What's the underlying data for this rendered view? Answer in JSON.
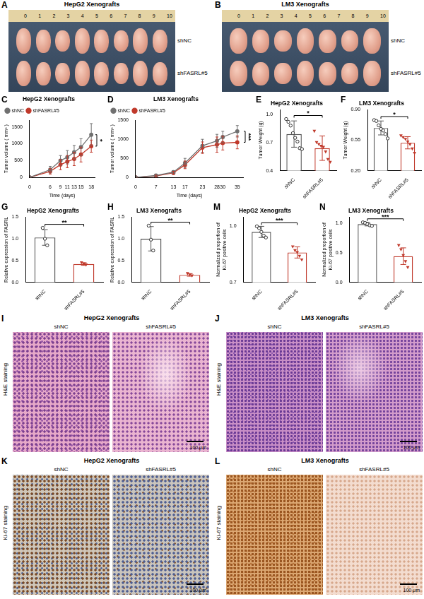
{
  "figure": {
    "photos": [
      {
        "label": "A",
        "title": "HepG2 Xenografts",
        "rows": [
          "shNC",
          "shFASRL#5"
        ],
        "count": 8,
        "ruler": [
          0,
          1,
          2,
          3,
          4,
          5,
          6,
          7,
          8,
          9,
          10
        ]
      },
      {
        "label": "B",
        "title": "LM3 Xenografts",
        "rows": [
          "shNC",
          "shFASRL#5"
        ],
        "count": 7,
        "ruler": [
          0,
          1,
          2,
          3,
          4,
          5,
          6,
          7,
          8,
          9,
          10
        ]
      }
    ],
    "micrographs": [
      {
        "label": "I",
        "title": "HepG2 Xenografts",
        "stain": "H&E staining",
        "groups": [
          "shNC",
          "shFASRL#5"
        ],
        "scale_bar": "100 μm"
      },
      {
        "label": "J",
        "title": "LM3 Xenografts",
        "stain": "H&E staining",
        "groups": [
          "shNC",
          "shFASRL#5"
        ],
        "scale_bar": "100 μm"
      },
      {
        "label": "K",
        "title": "HepG2 Xenografts",
        "stain": "Ki-67 staining",
        "groups": [
          "shNC",
          "shFASRL#5"
        ],
        "scale_bar": "100 μm"
      },
      {
        "label": "L",
        "title": "LM3 Xenografts",
        "stain": "Ki-67 staining",
        "groups": [
          "shNC",
          "shFASRL#5"
        ],
        "scale_bar": "100 μm"
      }
    ]
  },
  "chart_data": [
    {
      "label": "C",
      "type": "line",
      "title": "HepG2 Xenografts",
      "x_label": "Time (days)",
      "y_label": "Tumor volume ( mm³ )",
      "x": [
        0,
        6,
        9,
        11,
        13,
        15,
        18
      ],
      "xlim": [
        0,
        19
      ],
      "xticks": [
        0,
        6,
        9,
        11,
        13,
        15,
        18
      ],
      "ylim": [
        0,
        1700
      ],
      "yticks": [
        0,
        500,
        1000,
        1500
      ],
      "grid": false,
      "legend": "upper left",
      "annotation": "*",
      "series": [
        {
          "name": "shNC",
          "color": "#707070",
          "marker": "circle",
          "line_style": "solid",
          "values": [
            0,
            230,
            500,
            600,
            750,
            900,
            1270
          ],
          "errors": [
            0,
            100,
            150,
            200,
            200,
            250,
            330
          ]
        },
        {
          "name": "shFASRL#5",
          "color": "#c0392b",
          "marker": "circle",
          "line_style": "solid",
          "values": [
            0,
            180,
            380,
            470,
            550,
            680,
            930
          ],
          "errors": [
            0,
            80,
            150,
            180,
            200,
            220,
            180
          ]
        }
      ]
    },
    {
      "label": "D",
      "type": "line",
      "title": "LM3 Xenografts",
      "x_label": "Time (days)",
      "y_label": "Tumor volume ( mm³ )",
      "x": [
        0,
        7,
        13,
        17,
        23,
        28,
        30,
        35
      ],
      "xlim": [
        0,
        37
      ],
      "xticks": [
        0,
        7,
        13,
        17,
        23,
        28,
        30,
        35
      ],
      "ylim": [
        0,
        1500
      ],
      "yticks": [
        0,
        500,
        1000,
        1500
      ],
      "grid": false,
      "legend": "upper left",
      "annotation": "***",
      "series": [
        {
          "name": "shNC",
          "color": "#707070",
          "marker": "circle",
          "line_style": "solid",
          "values": [
            0,
            50,
            140,
            380,
            830,
            960,
            1060,
            1210
          ],
          "errors": [
            0,
            20,
            40,
            120,
            170,
            170,
            150,
            150
          ]
        },
        {
          "name": "shFASRL#5",
          "color": "#c0392b",
          "marker": "circle",
          "line_style": "solid",
          "values": [
            0,
            40,
            120,
            330,
            780,
            860,
            900,
            920
          ],
          "errors": [
            0,
            20,
            40,
            100,
            150,
            200,
            180,
            170
          ]
        }
      ]
    },
    {
      "label": "E",
      "type": "bar",
      "title": "HepG2 Xenografts",
      "y_label": "Tumor Weight (g)",
      "categories": [
        "shNC",
        "shFASRL#5"
      ],
      "values": [
        0.79,
        0.64
      ],
      "errors": [
        0.14,
        0.13
      ],
      "colors": [
        "#555555",
        "#c0392b"
      ],
      "points": [
        {
          "marker": "circle",
          "values": [
            0.95,
            0.92,
            0.88,
            0.8,
            0.75,
            0.71,
            0.64,
            0.63
          ]
        },
        {
          "marker": "triangle",
          "values": [
            0.82,
            0.7,
            0.68,
            0.66,
            0.65,
            0.6,
            0.52,
            0.49
          ]
        }
      ],
      "ylim": [
        0.4,
        1.05
      ],
      "yticks": [
        0.4,
        0.7,
        {
          "value": 1.0,
          "label": "1.0"
        }
      ],
      "grid": false,
      "annotation": "*"
    },
    {
      "label": "F",
      "type": "bar",
      "title": "LM3 Xenografts",
      "y_label": "Tumor Weight (g)",
      "categories": [
        "shNC",
        "shFASRL#5"
      ],
      "values": [
        0.69,
        0.52
      ],
      "errors": [
        0.08,
        0.07
      ],
      "colors": [
        "#555555",
        "#c0392b"
      ],
      "points": [
        {
          "marker": "circle",
          "values": [
            0.78,
            0.77,
            0.72,
            0.68,
            0.66,
            0.62,
            0.57
          ]
        },
        {
          "marker": "triangle",
          "values": [
            0.6,
            0.58,
            0.56,
            0.53,
            0.5,
            0.45,
            0.4
          ]
        }
      ],
      "ylim": [
        0.2,
        0.9
      ],
      "yticks": [
        {
          "value": 0.2,
          "label": "0.20"
        },
        0.55,
        {
          "value": 0.9,
          "label": "0.90"
        }
      ],
      "grid": false,
      "annotation": "*"
    },
    {
      "label": "G",
      "type": "bar",
      "title": "HepG2 Xenografts",
      "y_label": "Relative expression of FASRL",
      "categories": [
        "shNC",
        "shFASRL#5"
      ],
      "values": [
        1.03,
        0.42
      ],
      "errors": [
        0.18,
        0.03
      ],
      "colors": [
        "#555555",
        "#c0392b"
      ],
      "points": [
        {
          "marker": "circle",
          "values": [
            1.25,
            1.0,
            0.85
          ]
        },
        {
          "marker": "triangle",
          "values": [
            0.45,
            0.42,
            0.4
          ]
        }
      ],
      "ylim": [
        0,
        1.5
      ],
      "yticks": [
        {
          "value": 0,
          "label": "0.0"
        },
        0.5,
        {
          "value": 1.0,
          "label": "1.0"
        },
        1.5
      ],
      "grid": false,
      "annotation": "**"
    },
    {
      "label": "H",
      "type": "bar",
      "title": "LM3 Xenografts",
      "y_label": "Relative expression of FASRL",
      "categories": [
        "shNC",
        "shFASRL#5"
      ],
      "values": [
        1.0,
        0.17
      ],
      "errors": [
        0.28,
        0.03
      ],
      "colors": [
        "#555555",
        "#c0392b"
      ],
      "points": [
        {
          "marker": "circle",
          "values": [
            1.3,
            0.98,
            0.73
          ]
        },
        {
          "marker": "triangle",
          "values": [
            0.2,
            0.17,
            0.15
          ]
        }
      ],
      "ylim": [
        0,
        1.5
      ],
      "yticks": [
        {
          "value": 0,
          "label": "0.0"
        },
        0.5,
        {
          "value": 1.0,
          "label": "1.0"
        },
        1.5
      ],
      "grid": false,
      "annotation": "**"
    },
    {
      "label": "M",
      "type": "bar",
      "title": "HepG2 Xenografts",
      "y_label": [
        "Normalized proportion of",
        "Ki-67 positive cells"
      ],
      "categories": [
        "shNC",
        "shFASRL#5"
      ],
      "values": [
        0.97,
        0.86
      ],
      "errors": [
        0.03,
        0.03
      ],
      "colors": [
        "#555555",
        "#c0392b"
      ],
      "points": [
        {
          "marker": "circle",
          "values": [
            1.0,
            0.99,
            0.97,
            0.95,
            0.94
          ]
        },
        {
          "marker": "triangle",
          "values": [
            0.89,
            0.87,
            0.86,
            0.84,
            0.82
          ]
        }
      ],
      "ylim": [
        0.7,
        1.05
      ],
      "yticks": [
        0.7,
        {
          "value": 1.0,
          "label": "1.0"
        }
      ],
      "grid": false,
      "annotation": "***"
    },
    {
      "label": "N",
      "type": "bar",
      "title": "LM3 Xenografts",
      "y_label": [
        "Normalized proportion of",
        "Ki-67 positive cells"
      ],
      "categories": [
        "shNC",
        "shFASRL#5"
      ],
      "values": [
        0.98,
        0.44
      ],
      "errors": [
        0.03,
        0.14
      ],
      "colors": [
        "#555555",
        "#c0392b"
      ],
      "points": [
        {
          "marker": "circle",
          "values": [
            1.01,
            1.0,
            0.98,
            0.96,
            0.95
          ]
        },
        {
          "marker": "triangle",
          "values": [
            0.62,
            0.55,
            0.45,
            0.35,
            0.25
          ]
        }
      ],
      "ylim": [
        0,
        1.1
      ],
      "yticks": [
        {
          "value": 0,
          "label": "0.0"
        },
        0.5,
        {
          "value": 1.0,
          "label": "1.0"
        }
      ],
      "grid": false,
      "annotation": "***"
    }
  ]
}
